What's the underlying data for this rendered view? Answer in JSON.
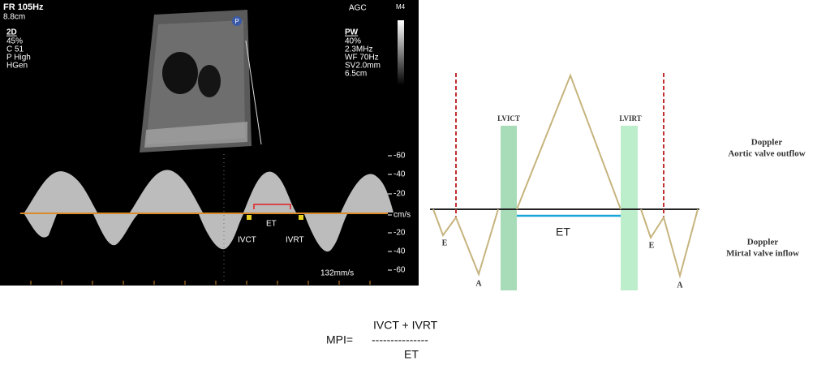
{
  "ultrasound": {
    "header_left": [
      "FR 105Hz",
      "8.8cm"
    ],
    "mode_2d": {
      "title": "2D",
      "lines": [
        "45%",
        "C 51",
        "P High",
        "HGen"
      ]
    },
    "agc": "AGC",
    "probe": "M4",
    "pw": {
      "title": "PW",
      "lines": [
        "40%",
        "2.3MHz",
        "WF 70Hz",
        "SV2.0mm",
        "6.5cm"
      ]
    },
    "marker": "P",
    "scale": [
      "-60",
      "-40",
      "-20",
      "cm/s",
      "-20",
      "-40",
      "-60"
    ],
    "sweep": "132mm/s",
    "labels": {
      "et": "ET",
      "ivct": "IVCT",
      "ivrt": "IVRT"
    }
  },
  "diagram": {
    "lvict": "LVICT",
    "lvirt": "LVIRT",
    "et": "ET",
    "left_e": "E",
    "left_a": "A",
    "right_e": "E",
    "right_a": "A",
    "outflow": {
      "title": "Doppler",
      "subtitle": "Aortic valve outflow"
    },
    "inflow": {
      "title": "Doppler",
      "subtitle": "Mirtal valve inflow"
    }
  },
  "formula": {
    "lhs": "MPI=",
    "numerator": "IVCT +  IVRT",
    "bar": "---------------",
    "denominator": "ET"
  }
}
